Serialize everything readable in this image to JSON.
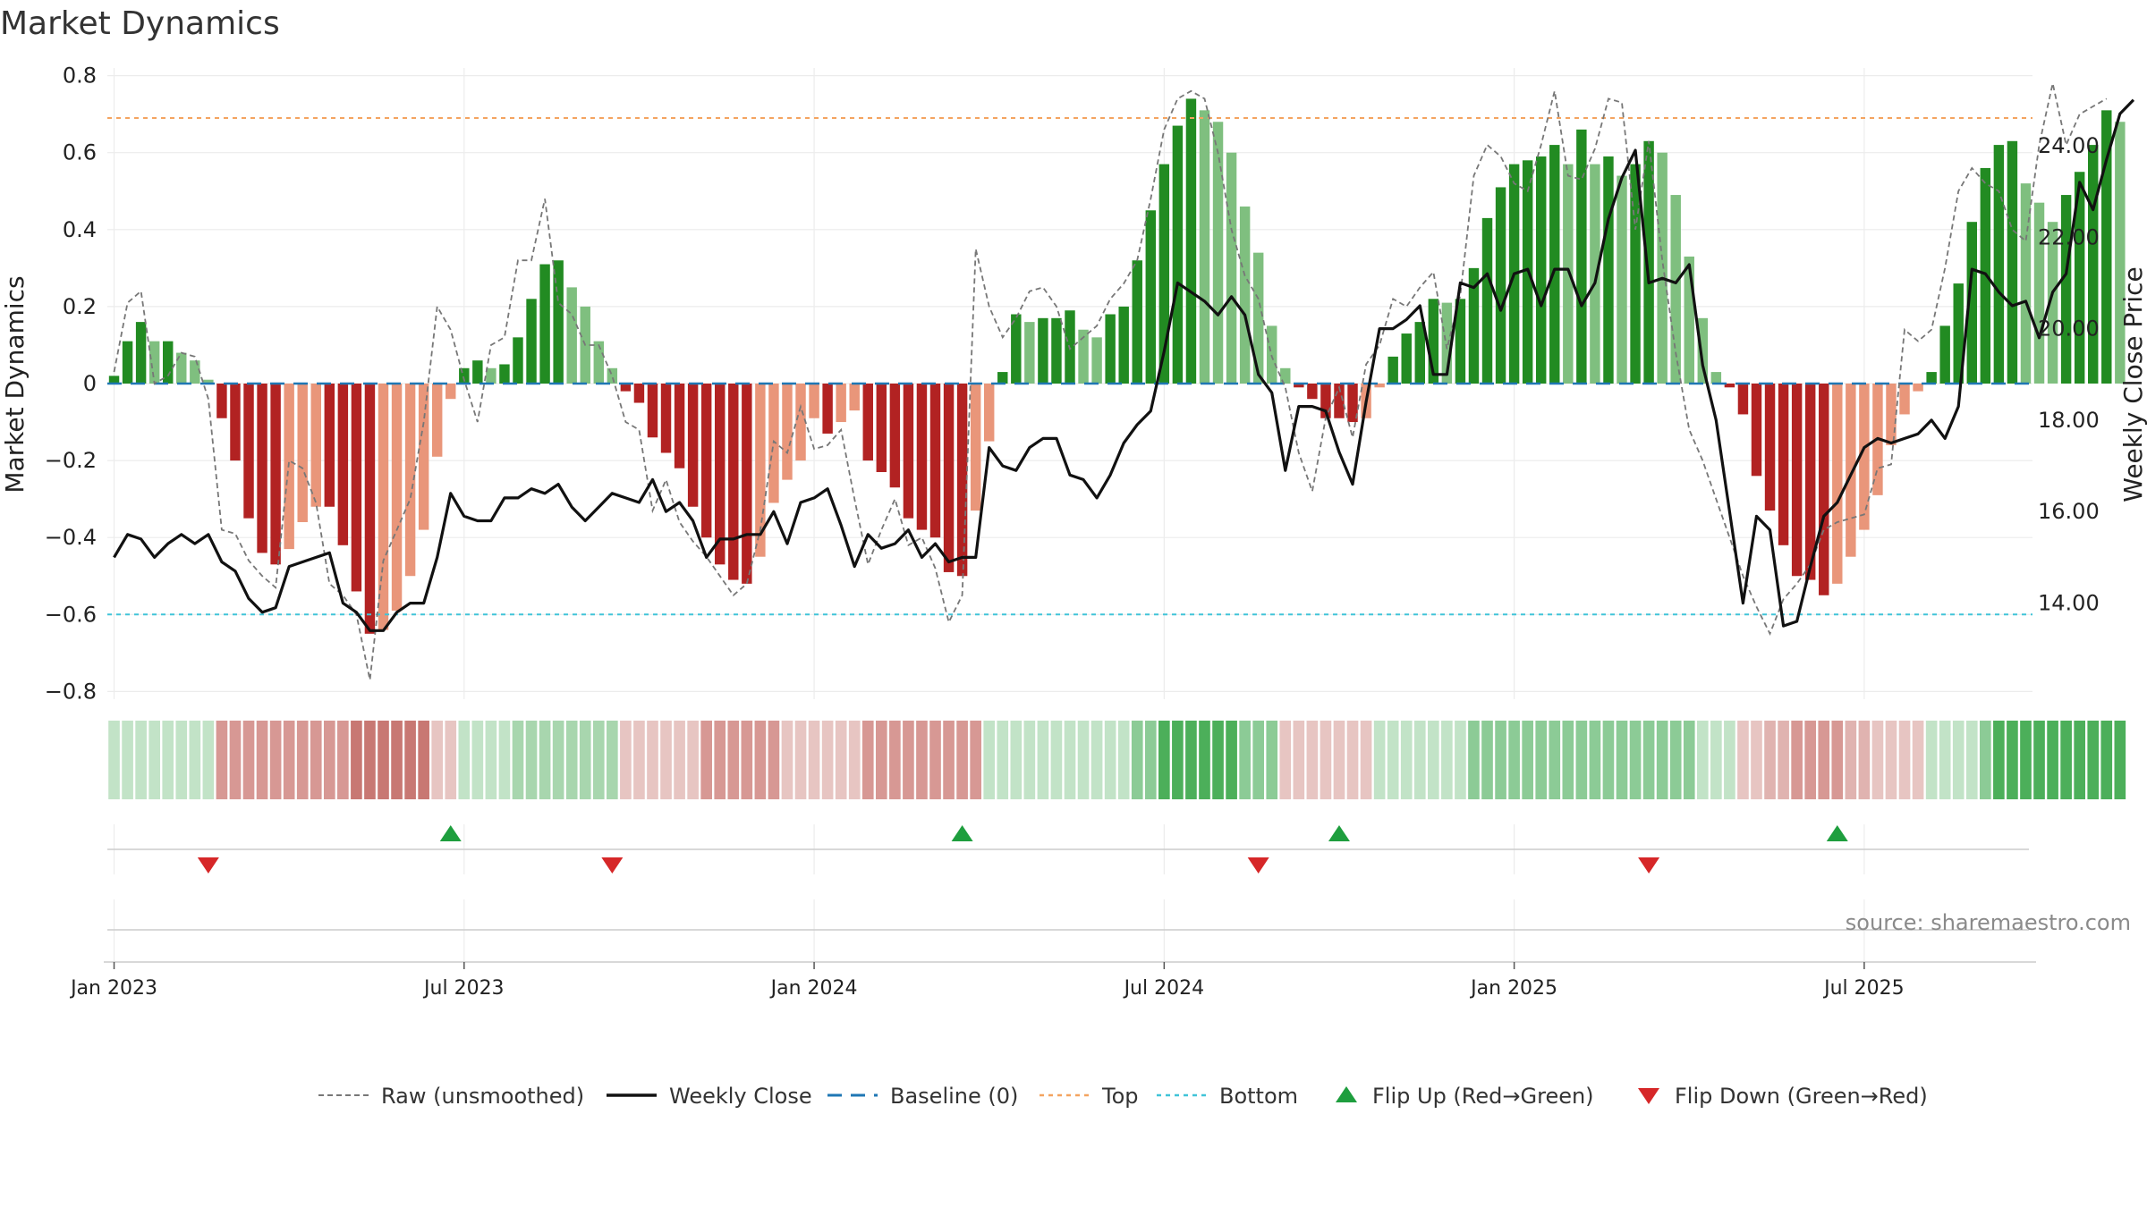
{
  "chart_data": {
    "type": "bar",
    "title": "Market Dynamics",
    "ylabel": "Market Dynamics",
    "y2label": "Weekly Close Price",
    "ylim": [
      -0.82,
      0.82
    ],
    "y_ticks": [
      -0.8,
      -0.6,
      -0.4,
      -0.2,
      0,
      0.2,
      0.4,
      0.6,
      0.8
    ],
    "y_tick_labels": [
      "−0.8",
      "−0.6",
      "−0.4",
      "−0.2",
      "0",
      "0.2",
      "0.4",
      "0.6",
      "0.8"
    ],
    "y2lim": [
      11.9,
      25.7
    ],
    "y2_ticks": [
      14,
      16,
      18,
      20,
      22,
      24
    ],
    "y2_tick_labels": [
      "14.00",
      "16.00",
      "18.00",
      "20.00",
      "22.00",
      "24.00"
    ],
    "x_tick_labels": [
      "Jan 2023",
      "Jul 2023",
      "Jan 2024",
      "Jul 2024",
      "Jan 2025",
      "Jul 2025"
    ],
    "x_tick_weeks": [
      0,
      26,
      52,
      78,
      104,
      130
    ],
    "top_line": 0.69,
    "bottom_line": -0.6,
    "baseline": 0,
    "weeks_count": 143,
    "bars": [
      0.02,
      0.11,
      0.16,
      0.11,
      0.11,
      0.08,
      0.06,
      0.01,
      -0.09,
      -0.2,
      -0.35,
      -0.44,
      -0.47,
      -0.43,
      -0.36,
      -0.32,
      -0.32,
      -0.42,
      -0.54,
      -0.65,
      -0.64,
      -0.59,
      -0.5,
      -0.38,
      -0.19,
      -0.04,
      0.04,
      0.06,
      0.04,
      0.05,
      0.12,
      0.22,
      0.31,
      0.32,
      0.25,
      0.2,
      0.11,
      0.04,
      -0.02,
      -0.05,
      -0.14,
      -0.18,
      -0.22,
      -0.32,
      -0.4,
      -0.47,
      -0.51,
      -0.52,
      -0.45,
      -0.31,
      -0.25,
      -0.2,
      -0.09,
      -0.13,
      -0.1,
      -0.07,
      -0.2,
      -0.23,
      -0.27,
      -0.35,
      -0.38,
      -0.4,
      -0.49,
      -0.5,
      -0.33,
      -0.15,
      0.03,
      0.18,
      0.16,
      0.17,
      0.17,
      0.19,
      0.14,
      0.12,
      0.18,
      0.2,
      0.32,
      0.45,
      0.57,
      0.67,
      0.74,
      0.71,
      0.68,
      0.6,
      0.46,
      0.34,
      0.15,
      0.04,
      -0.01,
      -0.04,
      -0.09,
      -0.09,
      -0.1,
      -0.09,
      -0.01,
      0.07,
      0.13,
      0.16,
      0.22,
      0.21,
      0.22,
      0.3,
      0.43,
      0.51,
      0.57,
      0.58,
      0.59,
      0.62,
      0.57,
      0.66,
      0.57,
      0.59,
      0.54,
      0.57,
      0.63,
      0.6,
      0.49,
      0.33,
      0.17,
      0.03,
      -0.01,
      -0.08,
      -0.24,
      -0.33,
      -0.42,
      -0.5,
      -0.51,
      -0.55,
      -0.52,
      -0.45,
      -0.38,
      -0.29,
      -0.16,
      -0.08,
      -0.02,
      0.03,
      0.15,
      0.26,
      0.42,
      0.56,
      0.62,
      0.63,
      0.52,
      0.47,
      0.42,
      0.49,
      0.55,
      0.62,
      0.71,
      0.68
    ],
    "raw": [
      0.03,
      0.21,
      0.24,
      0.0,
      0.02,
      0.08,
      0.07,
      -0.04,
      -0.38,
      -0.39,
      -0.46,
      -0.5,
      -0.53,
      -0.2,
      -0.22,
      -0.31,
      -0.52,
      -0.55,
      -0.6,
      -0.77,
      -0.46,
      -0.38,
      -0.3,
      -0.1,
      0.2,
      0.14,
      0.01,
      -0.1,
      0.1,
      0.12,
      0.32,
      0.32,
      0.48,
      0.21,
      0.18,
      0.1,
      0.1,
      0.02,
      -0.1,
      -0.12,
      -0.33,
      -0.25,
      -0.36,
      -0.41,
      -0.45,
      -0.5,
      -0.55,
      -0.52,
      -0.38,
      -0.15,
      -0.18,
      -0.06,
      -0.17,
      -0.16,
      -0.12,
      -0.3,
      -0.47,
      -0.38,
      -0.3,
      -0.42,
      -0.4,
      -0.48,
      -0.62,
      -0.55,
      0.35,
      0.2,
      0.12,
      0.17,
      0.24,
      0.25,
      0.2,
      0.09,
      0.12,
      0.15,
      0.22,
      0.26,
      0.32,
      0.48,
      0.66,
      0.74,
      0.76,
      0.74,
      0.6,
      0.4,
      0.28,
      0.22,
      0.07,
      -0.01,
      -0.18,
      -0.28,
      -0.09,
      -0.01,
      -0.14,
      0.05,
      0.1,
      0.22,
      0.2,
      0.25,
      0.29,
      0.09,
      0.23,
      0.54,
      0.62,
      0.59,
      0.52,
      0.5,
      0.62,
      0.76,
      0.54,
      0.53,
      0.61,
      0.74,
      0.73,
      0.4,
      0.63,
      0.32,
      0.08,
      -0.12,
      -0.2,
      -0.3,
      -0.4,
      -0.5,
      -0.58,
      -0.65,
      -0.56,
      -0.52,
      -0.47,
      -0.38,
      -0.36,
      -0.35,
      -0.34,
      -0.22,
      -0.21,
      0.14,
      0.11,
      0.14,
      0.3,
      0.5,
      0.56,
      0.52,
      0.5,
      0.4,
      0.37,
      0.62,
      0.78,
      0.62,
      0.7,
      0.72,
      0.74
    ],
    "close": [
      15.0,
      15.5,
      15.4,
      15.0,
      15.3,
      15.5,
      15.3,
      15.5,
      14.9,
      14.7,
      14.1,
      13.8,
      13.9,
      14.8,
      14.9,
      15.0,
      15.1,
      14.0,
      13.8,
      13.4,
      13.4,
      13.8,
      14.0,
      14.0,
      15.0,
      16.4,
      15.9,
      15.8,
      15.8,
      16.3,
      16.3,
      16.5,
      16.4,
      16.6,
      16.1,
      15.8,
      16.1,
      16.4,
      16.3,
      16.2,
      16.7,
      16.0,
      16.2,
      15.8,
      15.0,
      15.4,
      15.4,
      15.5,
      15.5,
      16.0,
      15.3,
      16.2,
      16.3,
      16.5,
      15.7,
      14.8,
      15.5,
      15.2,
      15.3,
      15.6,
      15.0,
      15.3,
      14.9,
      15.0,
      15.0,
      17.4,
      17.0,
      16.9,
      17.4,
      17.6,
      17.6,
      16.8,
      16.7,
      16.3,
      16.8,
      17.5,
      17.9,
      18.2,
      19.5,
      21.0,
      20.8,
      20.6,
      20.3,
      20.7,
      20.3,
      19.0,
      18.6,
      16.9,
      18.3,
      18.3,
      18.2,
      17.3,
      16.6,
      18.4,
      20.0,
      20.0,
      20.2,
      20.5,
      19.0,
      19.0,
      21.0,
      20.9,
      21.2,
      20.4,
      21.2,
      21.3,
      20.5,
      21.3,
      21.3,
      20.5,
      21.0,
      22.4,
      23.3,
      23.9,
      21.0,
      21.1,
      21.0,
      21.4,
      19.2,
      18.0,
      16.0,
      14.0,
      15.9,
      15.6,
      13.5,
      13.6,
      14.8,
      15.9,
      16.2,
      16.8,
      17.4,
      17.6,
      17.5,
      17.6,
      17.7,
      18.0,
      17.6,
      18.3,
      21.3,
      21.2,
      20.8,
      20.5,
      20.6,
      19.8,
      20.8,
      21.2,
      23.2,
      22.6,
      23.7,
      24.7,
      25.0
    ],
    "strip_colors": [
      "#c2e3c7",
      "#c2e3c7",
      "#c2e3c7",
      "#c2e3c7",
      "#c2e3c7",
      "#c2e3c7",
      "#c2e3c7",
      "#c2e3c7",
      "#d79894",
      "#d79894",
      "#d79894",
      "#d79894",
      "#d79894",
      "#d79894",
      "#d79894",
      "#d79894",
      "#d79894",
      "#d79894",
      "#c87873",
      "#c87873",
      "#c87873",
      "#c87873",
      "#c87873",
      "#c87873",
      "#e7c5c2",
      "#e7c5c2",
      "#c2e3c7",
      "#c2e3c7",
      "#c2e3c7",
      "#c2e3c7",
      "#a8d6ae",
      "#a8d6ae",
      "#a8d6ae",
      "#a8d6ae",
      "#a8d6ae",
      "#a8d6ae",
      "#a8d6ae",
      "#a8d6ae",
      "#e7c5c2",
      "#e7c5c2",
      "#e7c5c2",
      "#e7c5c2",
      "#e7c5c2",
      "#e7c5c2",
      "#d79894",
      "#d79894",
      "#d79894",
      "#d79894",
      "#d79894",
      "#d79894",
      "#e7c5c2",
      "#e7c5c2",
      "#e7c5c2",
      "#e7c5c2",
      "#e7c5c2",
      "#e7c5c2",
      "#d79894",
      "#d79894",
      "#d79894",
      "#d79894",
      "#d79894",
      "#d79894",
      "#d79894",
      "#d79894",
      "#d79894",
      "#c2e3c7",
      "#c2e3c7",
      "#c2e3c7",
      "#c2e3c7",
      "#c2e3c7",
      "#c2e3c7",
      "#c2e3c7",
      "#c2e3c7",
      "#c2e3c7",
      "#c2e3c7",
      "#c2e3c7",
      "#8ccb96",
      "#8ccb96",
      "#4caf5a",
      "#4caf5a",
      "#4caf5a",
      "#4caf5a",
      "#4caf5a",
      "#4caf5a",
      "#8ccb96",
      "#8ccb96",
      "#8ccb96",
      "#e7c5c2",
      "#e7c5c2",
      "#e7c5c2",
      "#e7c5c2",
      "#e7c5c2",
      "#e7c5c2",
      "#e7c5c2",
      "#c2e3c7",
      "#c2e3c7",
      "#c2e3c7",
      "#c2e3c7",
      "#c2e3c7",
      "#c2e3c7",
      "#c2e3c7",
      "#8ccb96",
      "#8ccb96",
      "#8ccb96",
      "#8ccb96",
      "#8ccb96",
      "#8ccb96",
      "#8ccb96",
      "#8ccb96",
      "#8ccb96",
      "#8ccb96",
      "#8ccb96",
      "#8ccb96",
      "#8ccb96",
      "#8ccb96",
      "#8ccb96",
      "#8ccb96",
      "#8ccb96",
      "#c2e3c7",
      "#c2e3c7",
      "#c2e3c7",
      "#e7c5c2",
      "#e7c5c2",
      "#e0b3b0",
      "#e0b3b0",
      "#d79894",
      "#d79894",
      "#d79894",
      "#d79894",
      "#e0b3b0",
      "#e0b3b0",
      "#e7c5c2",
      "#e7c5c2",
      "#e7c5c2",
      "#e7c5c2",
      "#c2e3c7",
      "#c2e3c7",
      "#c2e3c7",
      "#c2e3c7",
      "#8ccb96",
      "#4caf5a",
      "#4caf5a",
      "#4caf5a",
      "#4caf5a",
      "#4caf5a",
      "#4caf5a",
      "#4caf5a",
      "#4caf5a",
      "#4caf5a",
      "#4caf5a"
    ],
    "flip_up_weeks": [
      25,
      63,
      91,
      128
    ],
    "flip_down_weeks": [
      7,
      37,
      85,
      114
    ],
    "colors": {
      "up_strong": "#228b22",
      "up_weak": "#7fbf7f",
      "down_strong": "#b22222",
      "down_weak": "#e9967a",
      "close_line": "#111111",
      "raw_line": "#777777",
      "baseline": "#1f77b4",
      "top": "#f4a460",
      "bottom": "#40c4d8",
      "flip_up": "#1e9e3e",
      "flip_down": "#d62728"
    },
    "legend": [
      {
        "key": "raw",
        "label": "Raw (unsmoothed)"
      },
      {
        "key": "close",
        "label": "Weekly Close"
      },
      {
        "key": "baseline",
        "label": "Baseline (0)"
      },
      {
        "key": "top",
        "label": "Top"
      },
      {
        "key": "bottom",
        "label": "Bottom"
      },
      {
        "key": "flip_up",
        "label": "Flip Up (Red→Green)"
      },
      {
        "key": "flip_down",
        "label": "Flip Down (Green→Red)"
      }
    ],
    "source": "source: sharemaestro.com"
  }
}
